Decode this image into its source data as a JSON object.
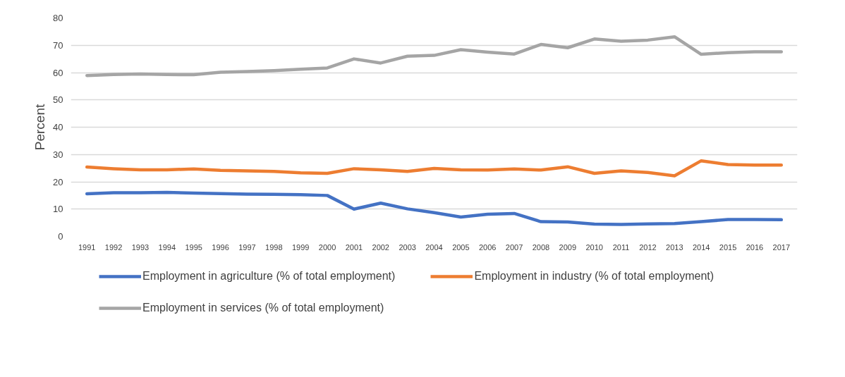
{
  "chart_data": {
    "type": "line",
    "ylabel": "Percent",
    "categories": [
      "1991",
      "1992",
      "1993",
      "1994",
      "1995",
      "1996",
      "1997",
      "1998",
      "1999",
      "2000",
      "2001",
      "2002",
      "2003",
      "2004",
      "2005",
      "2006",
      "2007",
      "2008",
      "2009",
      "2010",
      "2011",
      "2012",
      "2013",
      "2014",
      "2015",
      "2016",
      "2017"
    ],
    "ylim": [
      0,
      80
    ],
    "yticks": [
      0,
      10,
      20,
      30,
      40,
      50,
      60,
      70,
      80
    ],
    "grid": "y",
    "legend": "bottom",
    "marker": "none",
    "line_style": "solid",
    "series": [
      {
        "name": "Employment in agriculture (% of total employment)",
        "color": "#4472c4",
        "values": [
          15.6,
          16.0,
          16.0,
          16.1,
          15.9,
          15.7,
          15.5,
          15.4,
          15.3,
          15.0,
          10.0,
          12.2,
          10.1,
          8.7,
          7.1,
          8.1,
          8.4,
          5.4,
          5.3,
          4.5,
          4.4,
          4.6,
          4.7,
          5.4,
          6.2,
          6.2,
          6.1
        ]
      },
      {
        "name": "Employment in industry (% of total employment)",
        "color": "#ed7d31",
        "values": [
          25.4,
          24.8,
          24.4,
          24.4,
          24.7,
          24.2,
          24.0,
          23.8,
          23.3,
          23.1,
          24.8,
          24.4,
          23.8,
          24.9,
          24.4,
          24.3,
          24.7,
          24.3,
          25.5,
          23.1,
          24.0,
          23.4,
          22.2,
          27.7,
          26.3,
          26.1,
          26.1
        ]
      },
      {
        "name": "Employment in services (% of total employment)",
        "color": "#a5a5a5",
        "values": [
          58.9,
          59.3,
          59.5,
          59.3,
          59.2,
          60.1,
          60.4,
          60.7,
          61.2,
          61.7,
          65.0,
          63.5,
          66.0,
          66.3,
          68.4,
          67.5,
          66.8,
          70.3,
          69.1,
          72.3,
          71.5,
          71.9,
          73.1,
          66.7,
          67.3,
          67.6,
          67.6
        ]
      }
    ]
  }
}
